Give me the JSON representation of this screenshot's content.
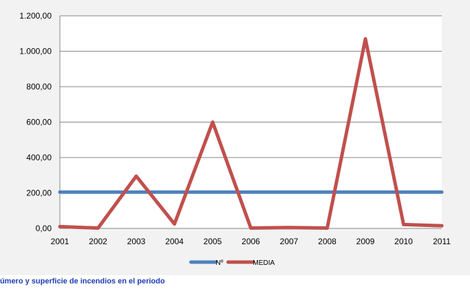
{
  "caption": "Número y superficie de incendios en el periodo",
  "chart_data": {
    "type": "line",
    "title": "",
    "xlabel": "",
    "ylabel": "",
    "categories": [
      "2001",
      "2002",
      "2003",
      "2004",
      "2005",
      "2006",
      "2007",
      "2008",
      "2009",
      "2010",
      "2011"
    ],
    "y_ticks": [
      "0,00",
      "200,00",
      "400,00",
      "600,00",
      "800,00",
      "1.000,00",
      "1.200,00"
    ],
    "ylim": [
      0,
      1200
    ],
    "grid": true,
    "legend_position": "bottom",
    "series": [
      {
        "name": "Nº",
        "color": "#4f81bd",
        "values": [
          205,
          205,
          205,
          205,
          205,
          205,
          205,
          205,
          205,
          205,
          205
        ]
      },
      {
        "name": "MEDIA",
        "color": "#c0504d",
        "values": [
          10,
          2,
          295,
          25,
          600,
          2,
          5,
          2,
          1070,
          22,
          15
        ]
      }
    ]
  }
}
